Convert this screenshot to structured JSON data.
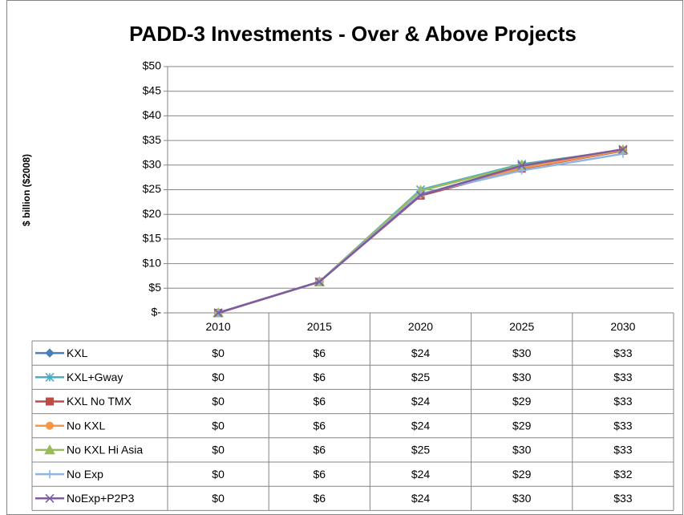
{
  "chart_data": {
    "type": "line",
    "title": "PADD-3 Investments - Over & Above Projects",
    "y_label": "$ billion ($2008)",
    "categories": [
      "2010",
      "2015",
      "2020",
      "2025",
      "2030"
    ],
    "ylim": [
      0,
      50
    ],
    "yticks": [
      {
        "value": 0,
        "label": "$-"
      },
      {
        "value": 5,
        "label": "$5"
      },
      {
        "value": 10,
        "label": "$10"
      },
      {
        "value": 15,
        "label": "$15"
      },
      {
        "value": 20,
        "label": "$20"
      },
      {
        "value": 25,
        "label": "$25"
      },
      {
        "value": 30,
        "label": "$30"
      },
      {
        "value": 35,
        "label": "$35"
      },
      {
        "value": 40,
        "label": "$40"
      },
      {
        "value": 45,
        "label": "$45"
      },
      {
        "value": 50,
        "label": "$50"
      }
    ],
    "grid": true,
    "series": [
      {
        "name": "KXL",
        "color": "#4a7ebb",
        "marker": "diamond",
        "values": [
          0,
          6.3,
          24,
          29.8,
          33
        ],
        "value_labels": [
          "$0",
          "$6",
          "$24",
          "$30",
          "$33"
        ]
      },
      {
        "name": "KXL+Gway",
        "color": "#4bacc6",
        "marker": "star",
        "values": [
          0,
          6.3,
          25,
          30.2,
          33
        ],
        "value_labels": [
          "$0",
          "$6",
          "$25",
          "$30",
          "$33"
        ]
      },
      {
        "name": "KXL No TMX",
        "color": "#be4b48",
        "marker": "square",
        "values": [
          0,
          6.3,
          23.8,
          29.3,
          32.9
        ],
        "value_labels": [
          "$0",
          "$6",
          "$24",
          "$29",
          "$33"
        ]
      },
      {
        "name": "No KXL",
        "color": "#f79646",
        "marker": "circle",
        "values": [
          0,
          6.3,
          24,
          29.4,
          33
        ],
        "value_labels": [
          "$0",
          "$6",
          "$24",
          "$29",
          "$33"
        ]
      },
      {
        "name": "No KXL Hi Asia",
        "color": "#9bbb59",
        "marker": "triangle",
        "values": [
          0,
          6.3,
          24.8,
          30,
          33.1
        ],
        "value_labels": [
          "$0",
          "$6",
          "$25",
          "$30",
          "$33"
        ]
      },
      {
        "name": "No Exp",
        "color": "#8eb4e3",
        "marker": "plus",
        "values": [
          0,
          6.3,
          24.2,
          28.9,
          32.3
        ],
        "value_labels": [
          "$0",
          "$6",
          "$24",
          "$29",
          "$32"
        ]
      },
      {
        "name": "NoExp+P2P3",
        "color": "#7f5ca0",
        "marker": "x",
        "values": [
          0,
          6.3,
          23.9,
          29.9,
          33.2
        ],
        "value_labels": [
          "$0",
          "$6",
          "$24",
          "$30",
          "$33"
        ]
      }
    ]
  }
}
